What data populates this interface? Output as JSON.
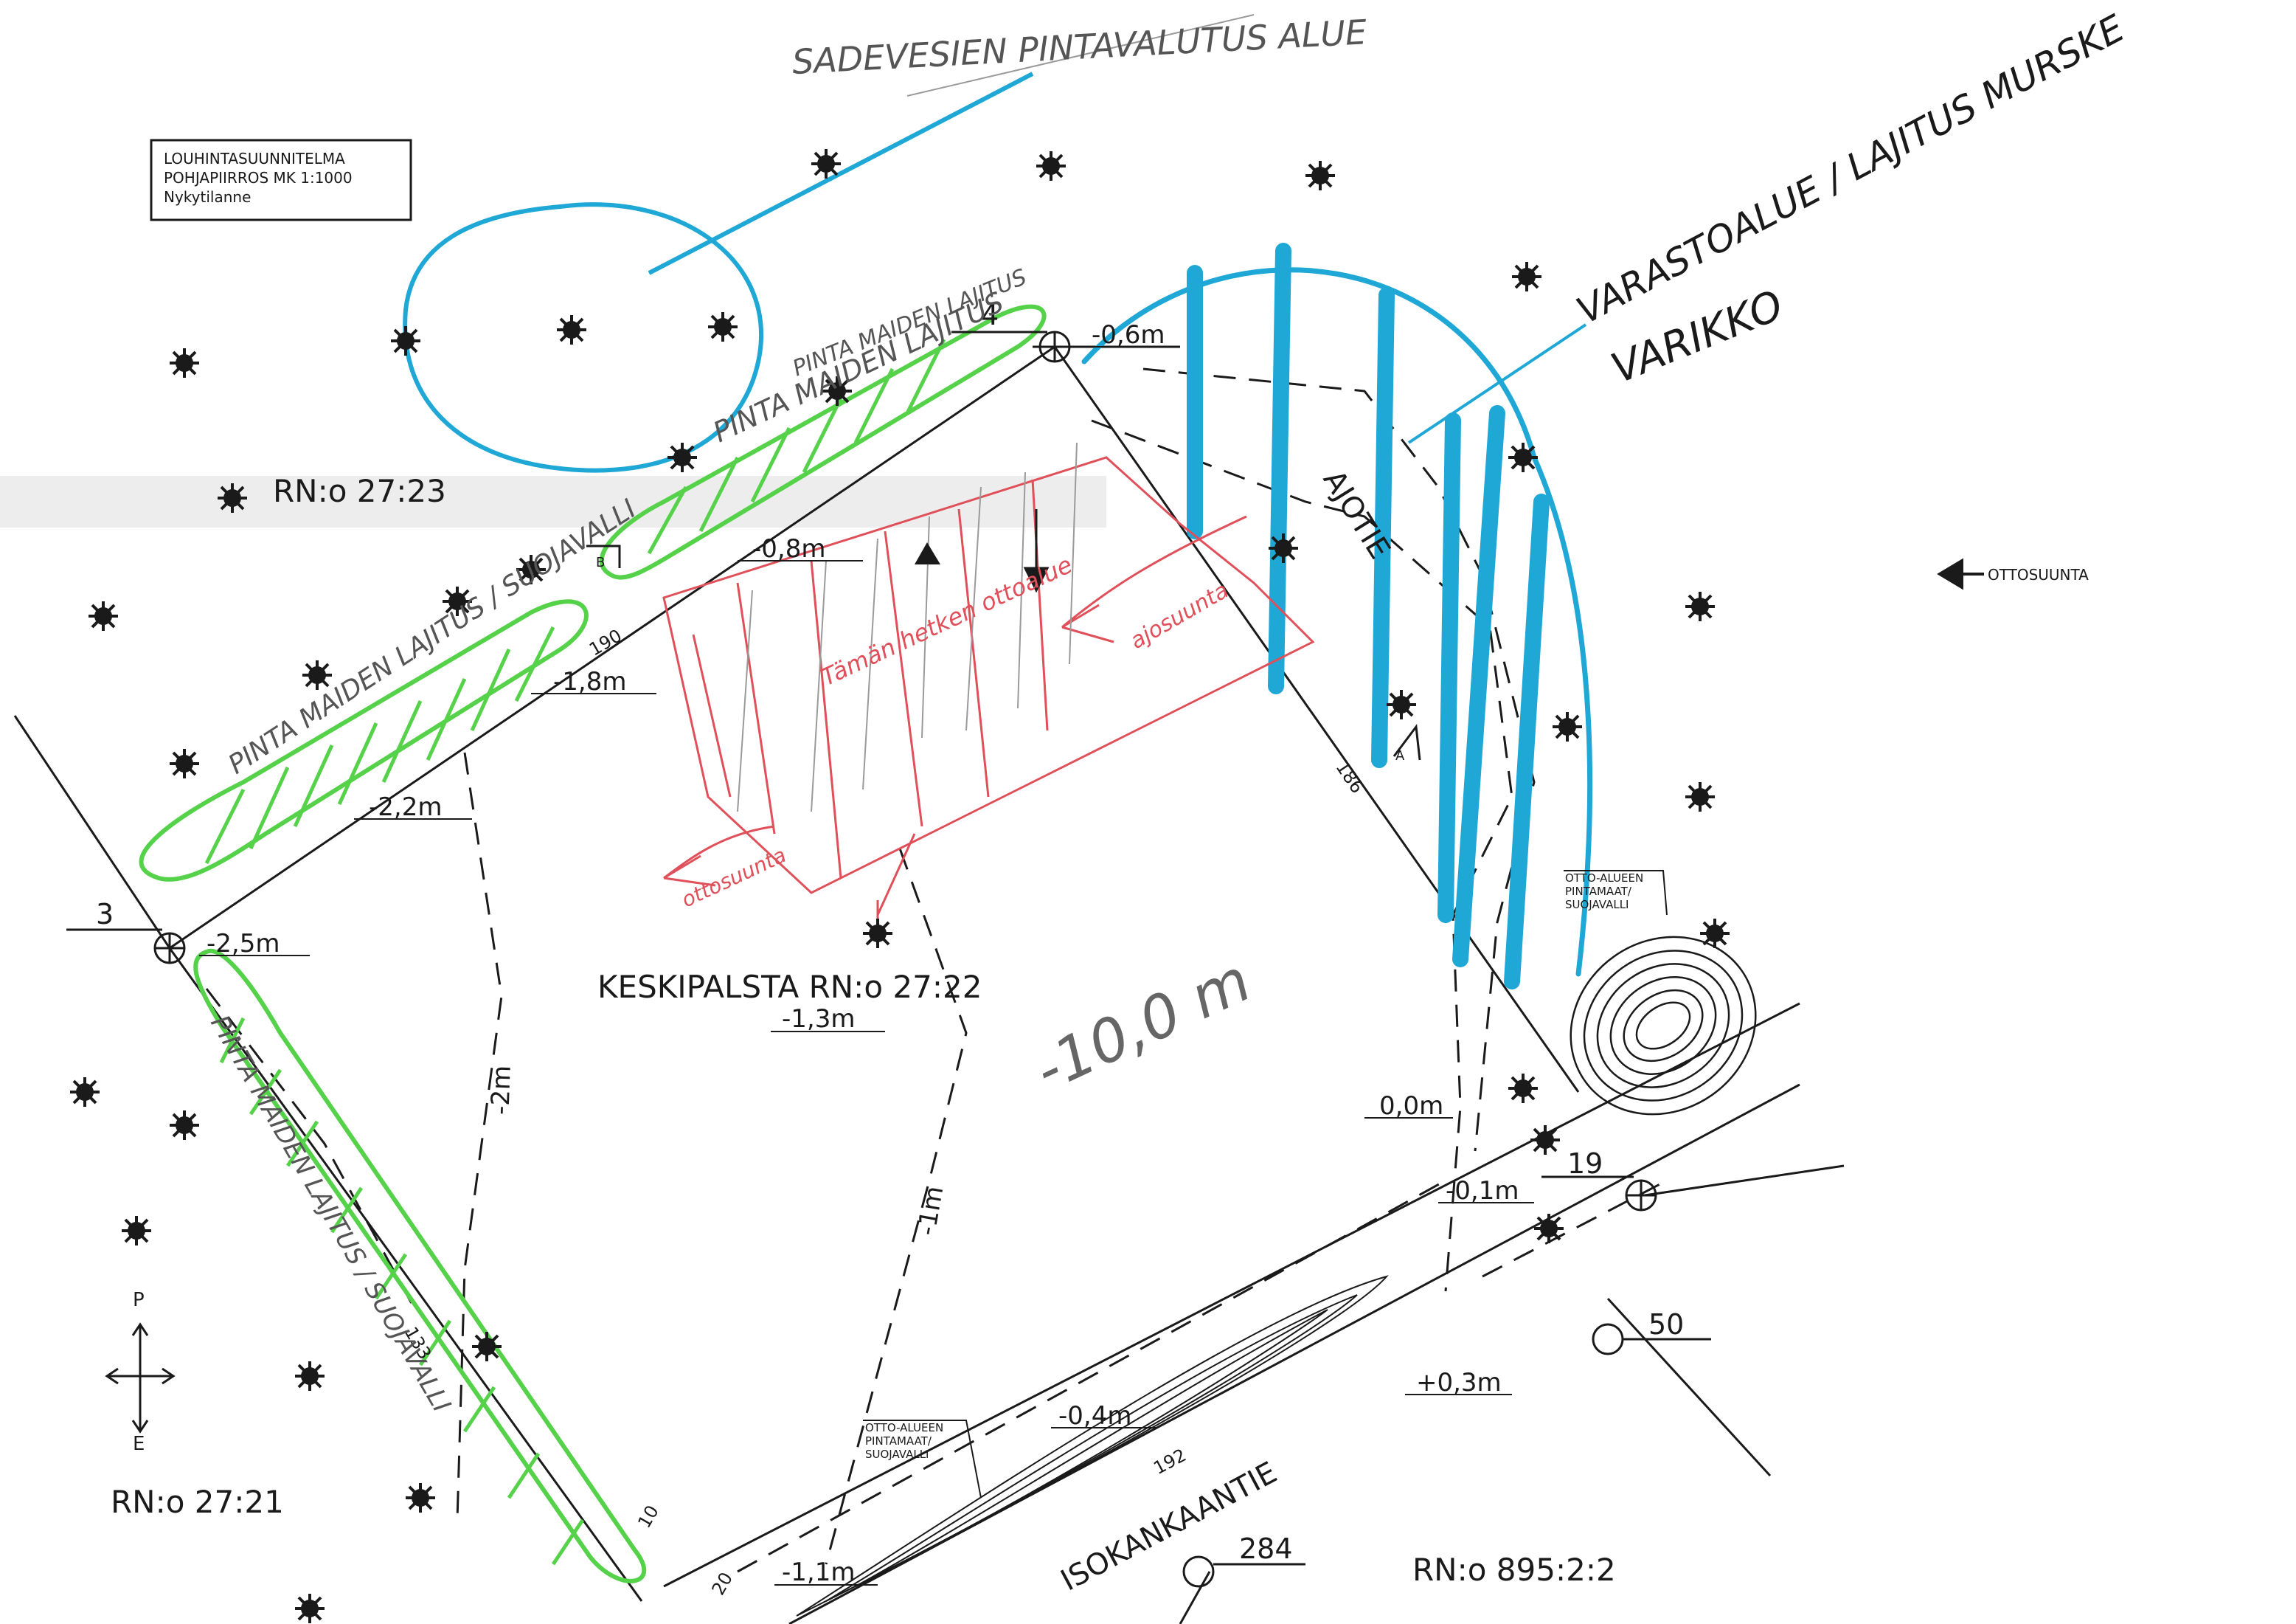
{
  "title_box": {
    "line1": "LOUHINTASUUNNITELMA",
    "line2": "POHJAPIIRROS MK 1:1000",
    "line3": "Nykytilanne"
  },
  "handwritten": {
    "rain_area": "SADEVESIEN PINTAVALUTUS ALUE",
    "storage_sorting": "VARASTOALUE / LAJITUS MURSKE",
    "depot": "VARIKKO",
    "topsoil_sort_1": "PINTA MAIDEN LAJITUS",
    "topsoil_sort_2": "PINTA MAIDEN LAJITUS",
    "protective_wall_sort": "PINTA MAIDEN LAJITUS / SUOJAVALLI",
    "topsoil_left": "PINTA MAIDEN LAJITUS / SUOJAVALLI",
    "current_area": "Tämän hetken ottoalue",
    "direction_1": "ottosuunta",
    "direction_2": "ajosuunta",
    "depth": "-10,0 m"
  },
  "labels": {
    "rn_2723": "RN:o 27:23",
    "rn_2722": "KESKIPALSTA RN:o 27:22",
    "rn_2721": "RN:o 27:21",
    "rn_89522": "RN:o 895:2:2",
    "ajotie": "AJOTIE",
    "isokankaantie": "ISOKANKAANTIE",
    "ottosuunta": "OTTOSUUNTA",
    "otto_top": [
      "OTTO-ALUEEN",
      "PINTAMAAT/",
      "SUOJAVALLI"
    ],
    "otto_bottom": [
      "OTTO-ALUEEN",
      "PINTAMAAT/",
      "SUOJAVALLI"
    ],
    "north": "P",
    "south": "E"
  },
  "points": {
    "p3": "3",
    "p4": "4",
    "p19": "19",
    "p50": "50",
    "p284": "284"
  },
  "elevations": {
    "e1": "-0,6m",
    "e2": "-0,8m",
    "e3": "-1,8m",
    "e4": "-2,2m",
    "e5": "-2,5m",
    "e6": "-1,3m",
    "e7": "0,0m",
    "e8": "-0,1m",
    "e9": "+0,3m",
    "e10": "-0,4m",
    "e11": "-1,1m",
    "e12": "-2m",
    "e13": "-1m"
  },
  "dims": {
    "d190": "190",
    "d186": "186",
    "d192": "192",
    "d10": "10",
    "d20": "20",
    "d133": "133"
  },
  "sections": {
    "a": "A",
    "b": "B"
  },
  "colors": {
    "green": "#55d24a",
    "blue": "#1fa8d6",
    "red": "#e0505a",
    "ink": "#1a1a1a",
    "pencil": "#8a8a8a"
  }
}
